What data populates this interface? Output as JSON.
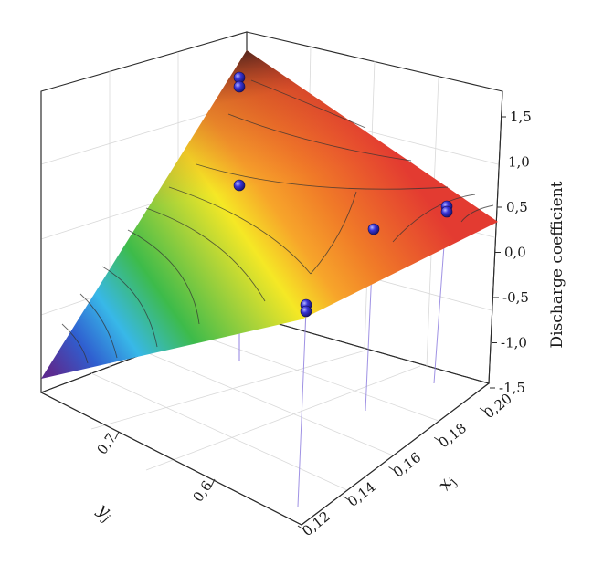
{
  "chart_data": {
    "type": "surface3d",
    "xlabel": "x",
    "xlabel_sub": "j",
    "ylabel": "y",
    "ylabel_sub": "j",
    "zlabel": "Discharge coefficient",
    "x_ticks": [
      "0,12",
      "0,14",
      "0,16",
      "0,18",
      "0,20"
    ],
    "y_ticks": [
      "0,7",
      "0,6"
    ],
    "z_ticks": [
      "1,5",
      "1,0",
      "0,5",
      "0,0",
      "-0,5",
      "-1,0",
      "-1,5"
    ],
    "zlim": [
      -1.5,
      1.5
    ],
    "colormap": [
      "#5b2c91",
      "#2f5fd0",
      "#38b8e8",
      "#3dbb4a",
      "#a6d23a",
      "#f5e825",
      "#f7a52a",
      "#f07a28",
      "#e33b31"
    ],
    "points": [
      {
        "x": 0.12,
        "y": 0.6,
        "z": -0.55
      },
      {
        "x": 0.12,
        "y": 0.6,
        "z": -0.6
      },
      {
        "x": 0.16,
        "y": 0.7,
        "z": 1.7
      },
      {
        "x": 0.16,
        "y": 0.7,
        "z": 1.55
      },
      {
        "x": 0.16,
        "y": 0.7,
        "z": 0.85
      },
      {
        "x": 0.2,
        "y": 0.6,
        "z": 0.45
      },
      {
        "x": 0.2,
        "y": 0.6,
        "z": 0.4
      },
      {
        "x": 0.18,
        "y": 0.65,
        "z": 0.3
      }
    ]
  }
}
